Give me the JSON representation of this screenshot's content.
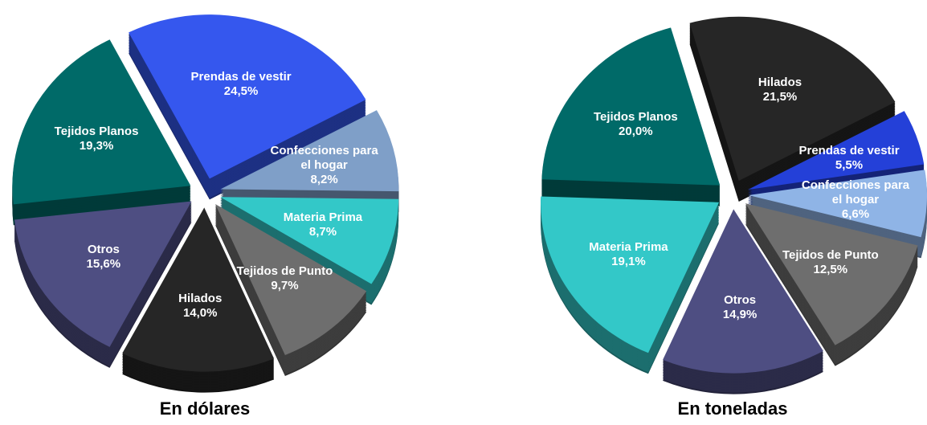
{
  "chart_data": [
    {
      "type": "pie",
      "title": "En dólares",
      "categories": [
        "Prendas de vestir",
        "Confecciones para el hogar",
        "Materia Prima",
        "Tejidos de Punto",
        "Hilados",
        "Otros",
        "Tejidos Planos"
      ],
      "values": [
        24.5,
        8.2,
        8.7,
        9.7,
        14.0,
        15.6,
        19.3
      ],
      "value_labels": [
        "24,5%",
        "8,2%",
        "8,7%",
        "9,7%",
        "14,0%",
        "15,6%",
        "19,3%"
      ],
      "colors": [
        "#3557ee",
        "#7f9fc8",
        "#33c8c8",
        "#6e6e6e",
        "#262626",
        "#4e4e82",
        "#006a68"
      ]
    },
    {
      "type": "pie",
      "title": "En toneladas",
      "categories": [
        "Hilados",
        "Prendas de vestir",
        "Confecciones para el hogar",
        "Tejidos de Punto",
        "Otros",
        "Materia Prima",
        "Tejidos Planos"
      ],
      "values": [
        21.5,
        5.5,
        6.6,
        12.5,
        14.9,
        19.1,
        20.0
      ],
      "value_labels": [
        "21,5%",
        "5,5%",
        "6,6%",
        "12,5%",
        "14,9%",
        "19,1%",
        "20,0%"
      ],
      "colors": [
        "#262626",
        "#2440d8",
        "#8fb4e6",
        "#6e6e6e",
        "#4e4e82",
        "#33c8c8",
        "#006a68"
      ]
    }
  ]
}
